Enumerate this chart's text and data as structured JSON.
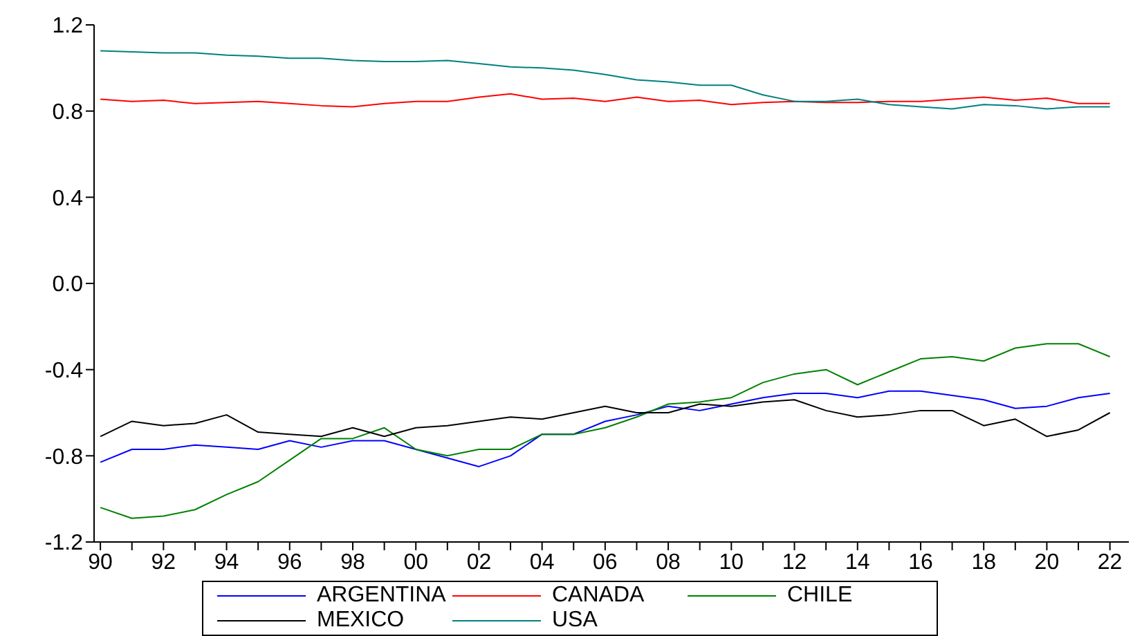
{
  "chart_data": {
    "type": "line",
    "x": [
      1990,
      1991,
      1992,
      1993,
      1994,
      1995,
      1996,
      1997,
      1998,
      1999,
      2000,
      2001,
      2002,
      2003,
      2004,
      2005,
      2006,
      2007,
      2008,
      2009,
      2010,
      2011,
      2012,
      2013,
      2014,
      2015,
      2016,
      2017,
      2018,
      2019,
      2020,
      2021,
      2022
    ],
    "series": [
      {
        "name": "ARGENTINA",
        "color": "#0000ff",
        "values": [
          -0.83,
          -0.77,
          -0.77,
          -0.75,
          -0.76,
          -0.77,
          -0.73,
          -0.76,
          -0.73,
          -0.73,
          -0.77,
          -0.81,
          -0.85,
          -0.8,
          -0.7,
          -0.7,
          -0.64,
          -0.61,
          -0.57,
          -0.59,
          -0.56,
          -0.53,
          -0.51,
          -0.51,
          -0.53,
          -0.5,
          -0.5,
          -0.52,
          -0.54,
          -0.58,
          -0.57,
          -0.53,
          -0.51
        ]
      },
      {
        "name": "CANADA",
        "color": "#ff0000",
        "values": [
          0.855,
          0.845,
          0.85,
          0.835,
          0.84,
          0.845,
          0.835,
          0.825,
          0.82,
          0.835,
          0.845,
          0.845,
          0.865,
          0.88,
          0.855,
          0.86,
          0.845,
          0.865,
          0.845,
          0.85,
          0.83,
          0.84,
          0.845,
          0.84,
          0.84,
          0.845,
          0.845,
          0.855,
          0.865,
          0.85,
          0.86,
          0.835,
          0.835
        ]
      },
      {
        "name": "CHILE",
        "color": "#008000",
        "values": [
          -1.04,
          -1.09,
          -1.08,
          -1.05,
          -0.98,
          -0.92,
          -0.82,
          -0.72,
          -0.72,
          -0.67,
          -0.77,
          -0.8,
          -0.77,
          -0.77,
          -0.7,
          -0.7,
          -0.67,
          -0.62,
          -0.56,
          -0.55,
          -0.53,
          -0.46,
          -0.42,
          -0.4,
          -0.47,
          -0.41,
          -0.35,
          -0.34,
          -0.36,
          -0.3,
          -0.28,
          -0.28,
          -0.34
        ]
      },
      {
        "name": "MEXICO",
        "color": "#000000",
        "values": [
          -0.71,
          -0.64,
          -0.66,
          -0.65,
          -0.61,
          -0.69,
          -0.7,
          -0.71,
          -0.67,
          -0.71,
          -0.67,
          -0.66,
          -0.64,
          -0.62,
          -0.63,
          -0.6,
          -0.57,
          -0.6,
          -0.6,
          -0.56,
          -0.57,
          -0.55,
          -0.54,
          -0.59,
          -0.62,
          -0.61,
          -0.59,
          -0.59,
          -0.66,
          -0.63,
          -0.71,
          -0.68,
          -0.6
        ]
      },
      {
        "name": "USA",
        "color": "#008080",
        "values": [
          1.08,
          1.075,
          1.07,
          1.07,
          1.06,
          1.055,
          1.045,
          1.045,
          1.035,
          1.03,
          1.03,
          1.035,
          1.02,
          1.005,
          1.0,
          0.99,
          0.97,
          0.945,
          0.935,
          0.92,
          0.92,
          0.875,
          0.845,
          0.845,
          0.855,
          0.83,
          0.82,
          0.81,
          0.83,
          0.825,
          0.81,
          0.82,
          0.82
        ]
      }
    ],
    "xlim": [
      1989.8,
      2022.6
    ],
    "xticks": [
      {
        "value": 1990,
        "label": "90"
      },
      {
        "value": 1991,
        "label": null
      },
      {
        "value": 1992,
        "label": "92"
      },
      {
        "value": 1993,
        "label": null
      },
      {
        "value": 1994,
        "label": "94"
      },
      {
        "value": 1995,
        "label": null
      },
      {
        "value": 1996,
        "label": "96"
      },
      {
        "value": 1997,
        "label": null
      },
      {
        "value": 1998,
        "label": "98"
      },
      {
        "value": 1999,
        "label": null
      },
      {
        "value": 2000,
        "label": "00"
      },
      {
        "value": 2001,
        "label": null
      },
      {
        "value": 2002,
        "label": "02"
      },
      {
        "value": 2003,
        "label": null
      },
      {
        "value": 2004,
        "label": "04"
      },
      {
        "value": 2005,
        "label": null
      },
      {
        "value": 2006,
        "label": "06"
      },
      {
        "value": 2007,
        "label": null
      },
      {
        "value": 2008,
        "label": "08"
      },
      {
        "value": 2009,
        "label": null
      },
      {
        "value": 2010,
        "label": "10"
      },
      {
        "value": 2011,
        "label": null
      },
      {
        "value": 2012,
        "label": "12"
      },
      {
        "value": 2013,
        "label": null
      },
      {
        "value": 2014,
        "label": "14"
      },
      {
        "value": 2015,
        "label": null
      },
      {
        "value": 2016,
        "label": "16"
      },
      {
        "value": 2017,
        "label": null
      },
      {
        "value": 2018,
        "label": "18"
      },
      {
        "value": 2019,
        "label": null
      },
      {
        "value": 2020,
        "label": "20"
      },
      {
        "value": 2021,
        "label": null
      },
      {
        "value": 2022,
        "label": "22"
      }
    ],
    "ylim": [
      -1.2,
      1.2
    ],
    "yticks": [
      -1.2,
      -0.8,
      -0.4,
      {
        "value": 0,
        "label": "0.0"
      },
      0.4,
      0.8,
      1.2
    ],
    "grid": false,
    "legend": "bottom",
    "marker": "none",
    "line_style": "solid"
  }
}
